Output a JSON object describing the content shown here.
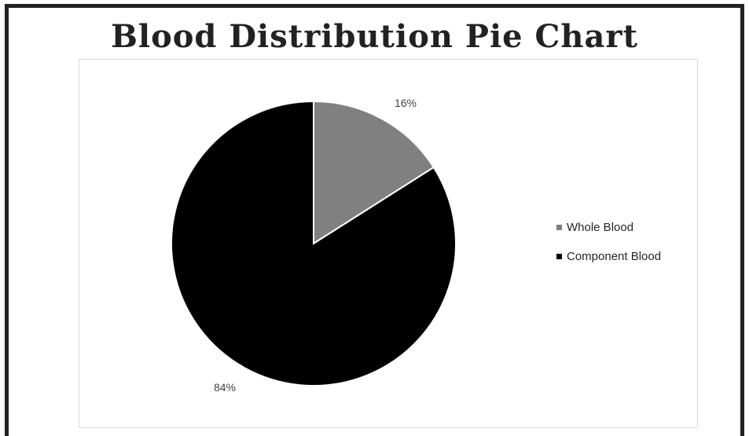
{
  "title": "Blood Distribution Pie Chart",
  "chart_data": {
    "type": "pie",
    "title": "Blood Distribution Pie Chart",
    "categories": [
      "Whole Blood",
      "Component Blood"
    ],
    "values": [
      16,
      84
    ],
    "data_labels": [
      "16%",
      "84%"
    ],
    "colors": [
      "#808080",
      "#000000"
    ],
    "slice_border_color": "#ffffff",
    "start_angle": "12 o'clock, clockwise",
    "legend_position": "right"
  }
}
